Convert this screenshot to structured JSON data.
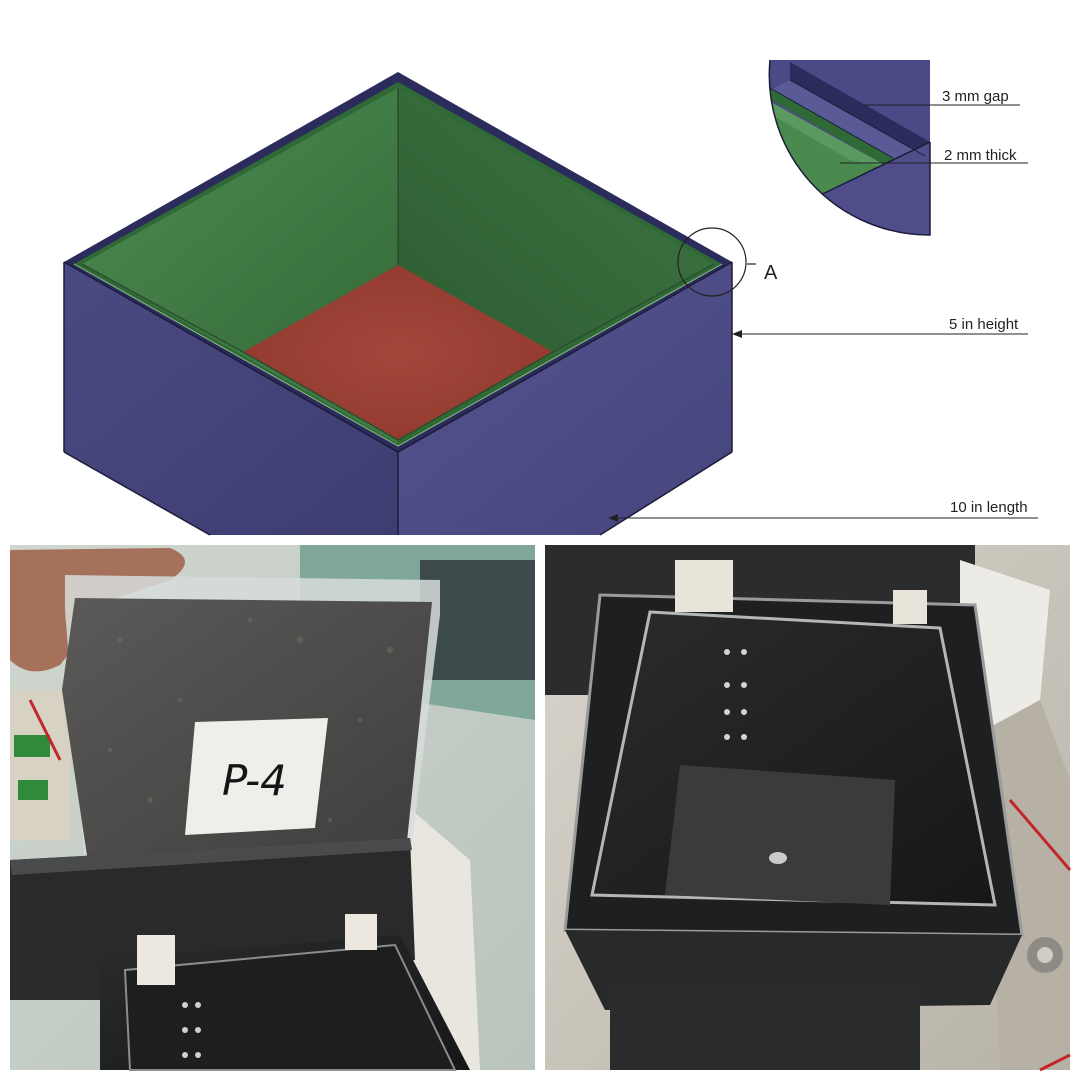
{
  "diagram": {
    "detail_marker": "A",
    "labels": {
      "gap": "3 mm gap",
      "thickness": "2 mm thick",
      "height": "5 in height",
      "length": "10 in length"
    }
  },
  "photos": {
    "sample_bag_label": "P-4"
  },
  "colors": {
    "outer_box": "#4b4a86",
    "inner_wall": "#3f7a44",
    "inner_floor": "#9b3b30",
    "edge": "#1c1c3a"
  }
}
